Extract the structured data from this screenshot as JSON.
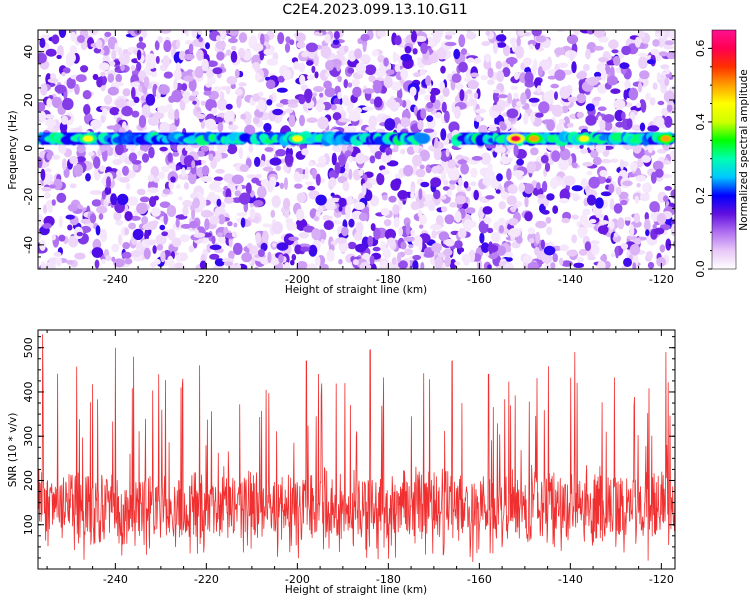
{
  "title": "C2E4.2023.099.13.10.G11",
  "chart_data": [
    {
      "type": "heatmap",
      "xlabel": "Height of straight line (km)",
      "ylabel": "Frequency (Hz)",
      "xlim": [
        -257,
        -117
      ],
      "ylim": [
        -50,
        49
      ],
      "xticks": [
        -240,
        -220,
        -200,
        -180,
        -160,
        -140,
        -120
      ],
      "yticks": [
        -40,
        -20,
        0,
        20,
        40
      ],
      "colorbar": {
        "label": "Normalized spectral amplitude",
        "range": [
          0.0,
          0.65
        ],
        "ticks": [
          0.0,
          0.2,
          0.4,
          0.6
        ],
        "colors": [
          "#ffffff",
          "#e8c8f8",
          "#b070f0",
          "#6010e0",
          "#0000ff",
          "#00c8ff",
          "#00ffb0",
          "#00ff00",
          "#d0ff00",
          "#ffff00",
          "#ffa000",
          "#ff3000",
          "#ff0050",
          "#ff1090"
        ]
      },
      "band": {
        "frequency_hz": 4,
        "segments": [
          [
            -257,
            -211
          ],
          [
            -210,
            -172
          ],
          [
            -165,
            -117
          ]
        ],
        "hotspots": [
          {
            "x": -246,
            "amp": 0.45
          },
          {
            "x": -200,
            "amp": 0.45
          },
          {
            "x": -152,
            "amp": 0.6
          },
          {
            "x": -148,
            "amp": 0.5
          },
          {
            "x": -137,
            "amp": 0.45
          },
          {
            "x": -119,
            "amp": 0.5
          }
        ]
      }
    },
    {
      "type": "line",
      "xlabel": "Height of straight line (km)",
      "ylabel": "SNR (10 * v/v)",
      "xlim": [
        -257,
        -117
      ],
      "ylim": [
        0,
        540
      ],
      "xticks": [
        -240,
        -220,
        -200,
        -180,
        -160,
        -140,
        -120
      ],
      "yticks": [
        100,
        200,
        300,
        400,
        500
      ],
      "series": [
        {
          "color": "#f03030",
          "baseline": 140,
          "spread": 90,
          "peaks": [
            {
              "x": -256,
              "y": 530
            },
            {
              "x": -240,
              "y": 500
            },
            {
              "x": -236,
              "y": 480
            },
            {
              "x": -198,
              "y": 470
            },
            {
              "x": -184,
              "y": 495
            },
            {
              "x": -166,
              "y": 470
            },
            {
              "x": -158,
              "y": 440
            },
            {
              "x": -139,
              "y": 490
            },
            {
              "x": -119,
              "y": 490
            }
          ]
        }
      ]
    }
  ]
}
